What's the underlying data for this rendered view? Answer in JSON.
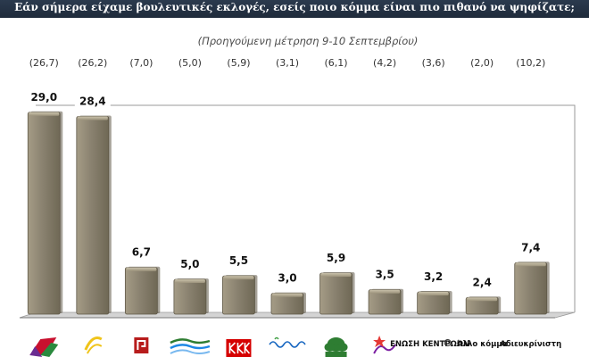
{
  "header": {
    "title": "Εάν σήμερα είχαμε βουλευτικές εκλογές, εσείς ποιο κόμμα είναι πιο πιθανό να ψηφίζατε;"
  },
  "chart_data": {
    "type": "bar",
    "subtitle": "(Προηγούμενη μέτρηση 9-10 Σεπτεμβρίου)",
    "categories": [
      "ΣΥΡΙΖΑ",
      "ΝΔ",
      "ΧΑ",
      "ΠΑΣΟΚ",
      "ΚΚΕ",
      "ΑΝΕΛ",
      "Ποτάμι",
      "ΛΑΕ",
      "ΕΝΩΣΗ ΚΕΝΤΡΩΩΝ",
      "Άλλο κόμμα",
      "Αδιευκρίνιστη ψήφος"
    ],
    "category_labels_printed": [
      "",
      "",
      "",
      "",
      "",
      "",
      "",
      "",
      "ΕΝΩΣΗ ΚΕΝΤΡΩΩΝ",
      "Άλλο κόμμα",
      "Αδιευκρίνιστη"
    ],
    "values": [
      29.0,
      28.4,
      6.7,
      5.0,
      5.5,
      3.0,
      5.9,
      3.5,
      3.2,
      2.4,
      7.4
    ],
    "value_labels": [
      "29,0",
      "28,4",
      "6,7",
      "5,0",
      "5,5",
      "3,0",
      "5,9",
      "3,5",
      "3,2",
      "2,4",
      "7,4"
    ],
    "previous_labels": [
      "(26,7)",
      "(26,2)",
      "(7,0)",
      "(5,0)",
      "(5,9)",
      "(3,1)",
      "(6,1)",
      "(4,2)",
      "(3,6)",
      "(2,0)",
      "(10,2)"
    ],
    "previous_values": [
      26.7,
      26.2,
      7.0,
      5.0,
      5.9,
      3.1,
      6.1,
      4.2,
      3.6,
      2.0,
      10.2
    ],
    "ylim": [
      0,
      30
    ],
    "grid": false,
    "bar_color": "#8a8270",
    "bar_edge_color": "#5f5847",
    "logos": [
      {
        "icon": "syriza-flag-icon",
        "colors": [
          "#c8102e",
          "#2a8a3e",
          "#6a2c91"
        ]
      },
      {
        "icon": "nd-logo-icon",
        "colors": [
          "#f0c419",
          "#1a4d8f"
        ]
      },
      {
        "icon": "xa-meander-icon",
        "colors": [
          "#b71c1c",
          "#111111"
        ]
      },
      {
        "icon": "pasok-wave-icon",
        "colors": [
          "#2e7d32",
          "#1e88e5"
        ]
      },
      {
        "icon": "kke-logo-icon",
        "colors": [
          "#d50000"
        ]
      },
      {
        "icon": "anel-script-icon",
        "colors": [
          "#1565c0",
          "#43a047"
        ]
      },
      {
        "icon": "potami-tree-icon",
        "colors": [
          "#2e7d32"
        ]
      },
      {
        "icon": "lae-star-icon",
        "colors": [
          "#e53935",
          "#7b1fa2"
        ]
      },
      {
        "icon": "ek-star-icon",
        "colors": [
          "#333333"
        ]
      },
      {
        "icon": "other-text-icon",
        "colors": []
      },
      {
        "icon": "undecided-text-icon",
        "colors": []
      }
    ]
  }
}
